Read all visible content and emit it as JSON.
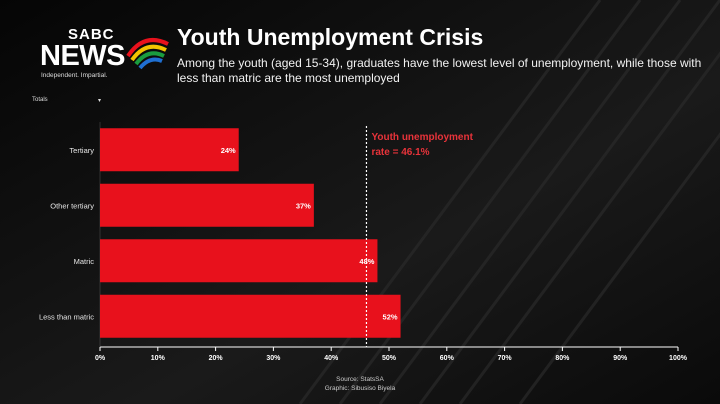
{
  "brand": {
    "name_top": "SABC",
    "name_main": "NEWS",
    "tagline": "Independent. Impartial."
  },
  "header": {
    "title": "Youth Unemployment Crisis",
    "subtitle": "Among the youth (aged 15-34), graduates have the lowest level of unemployment, while those with less than matric are the most unemployed"
  },
  "filter": {
    "label": "Totals",
    "caret": "▾"
  },
  "chart_data": {
    "type": "bar",
    "orientation": "horizontal",
    "categories": [
      "Tertiary",
      "Other tertiary",
      "Matric",
      "Less than matric"
    ],
    "values": [
      24,
      37,
      48,
      52
    ],
    "data_labels": [
      "24%",
      "37%",
      "48%",
      "52%"
    ],
    "xlim": [
      0,
      100
    ],
    "x_ticks": [
      0,
      10,
      20,
      30,
      40,
      50,
      60,
      70,
      80,
      90,
      100
    ],
    "x_tick_labels": [
      "0%",
      "10%",
      "20%",
      "30%",
      "40%",
      "50%",
      "60%",
      "70%",
      "80%",
      "90%",
      "100%"
    ],
    "grid": false,
    "reference_line": {
      "value": 46.1,
      "label_line1": "Youth unemployment",
      "label_line2": "rate = 46.1%"
    },
    "colors": {
      "bar": "#e8111c",
      "annotation": "#e8333a"
    }
  },
  "footer": {
    "source": "Source: StatsSA",
    "graphic": "Graphic: Sibusiso Biyela"
  }
}
